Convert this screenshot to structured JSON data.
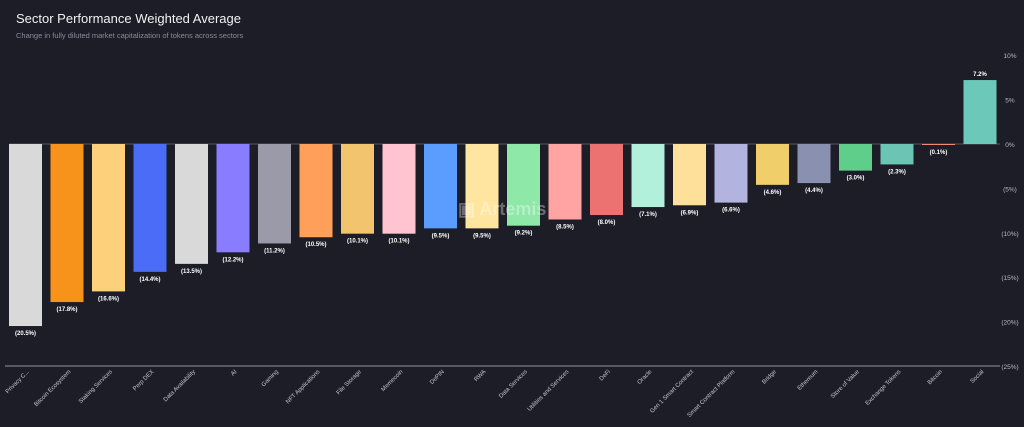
{
  "chart_data": {
    "type": "bar",
    "title": "Sector Performance Weighted Average",
    "subtitle": "Change in fully diluted market capitalization of tokens across sectors",
    "watermark": "Artemis",
    "categories": [
      "Privacy C...",
      "Bitcoin Ecosystem",
      "Staking Services",
      "Perp DEX",
      "Data Availability",
      "AI",
      "Gaming",
      "NFT Applications",
      "File Storage",
      "Memecoin",
      "DePIN",
      "RWA",
      "Data Services",
      "Utilities and Services",
      "DeFi",
      "Oracle",
      "Gen 1 Smart Contract",
      "Smart Contract Platform",
      "Bridge",
      "Ethereum",
      "Store of Value",
      "Exchange Tokens",
      "Bitcoin",
      "Social"
    ],
    "values": [
      -20.5,
      -17.8,
      -16.6,
      -14.4,
      -13.5,
      -12.2,
      -11.2,
      -10.5,
      -10.1,
      -10.1,
      -9.5,
      -9.5,
      -9.2,
      -8.5,
      -8.0,
      -7.1,
      -6.9,
      -6.6,
      -4.6,
      -4.4,
      -3.0,
      -2.3,
      -0.1,
      7.2
    ],
    "data_labels": [
      "(20.5%)",
      "(17.8%)",
      "(16.6%)",
      "(14.4%)",
      "(13.5%)",
      "(12.2%)",
      "(11.2%)",
      "(10.5%)",
      "(10.1%)",
      "(10.1%)",
      "(9.5%)",
      "(9.5%)",
      "(9.2%)",
      "(8.5%)",
      "(8.0%)",
      "(7.1%)",
      "(6.9%)",
      "(6.6%)",
      "(4.6%)",
      "(4.4%)",
      "(3.0%)",
      "(2.3%)",
      "(0.1%)",
      "7.2%"
    ],
    "colors": [
      "#d9d9d9",
      "#f7931a",
      "#fdd17b",
      "#4a6cf7",
      "#d9d9d9",
      "#8a7cff",
      "#9a9aa8",
      "#ff9f5a",
      "#f2c46d",
      "#ffc4d0",
      "#5b9cff",
      "#ffe5a0",
      "#8ee8a8",
      "#ffa3a3",
      "#ec7272",
      "#b2f0dc",
      "#ffe09a",
      "#b3b3e0",
      "#f0cf6a",
      "#8a90b0",
      "#5fce8a",
      "#6cc4b4",
      "#f08a70",
      "#6cc8b8"
    ],
    "ylim": [
      -25,
      10
    ],
    "yticks": [
      10,
      5,
      0,
      -5,
      -10,
      -15,
      -20,
      -25
    ],
    "ytick_labels": [
      "10%",
      "5%",
      "0%",
      "(5%)",
      "(10%)",
      "(15%)",
      "(20%)",
      "(25%)"
    ],
    "xlabel": "",
    "ylabel": "",
    "grid": false
  }
}
